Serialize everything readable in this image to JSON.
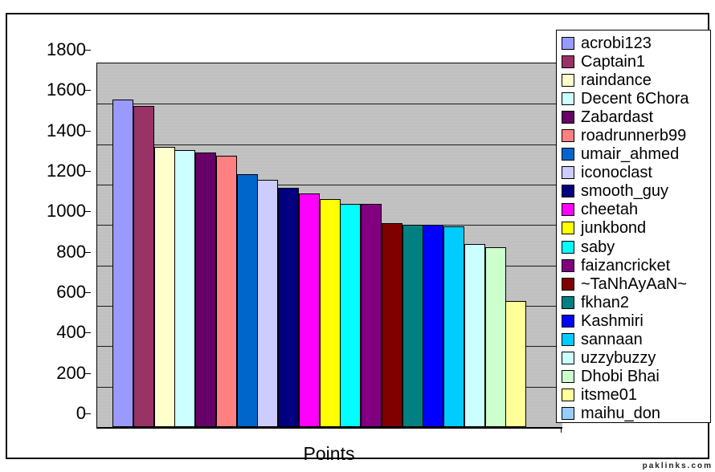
{
  "page": {
    "background": "#FFFFFF"
  },
  "watermark": {
    "text": "paklinks.com"
  },
  "chart_data": {
    "type": "bar",
    "title": "",
    "xlabel": "Points",
    "ylabel": "",
    "ylim": [
      0,
      1800
    ],
    "yticks": [
      1800,
      1600,
      1400,
      1200,
      1000,
      800,
      600,
      400,
      200,
      0
    ],
    "grid": true,
    "legend_position": "right",
    "plot_bg": "#C0C0C0",
    "categories": [
      "Points"
    ],
    "series": [
      {
        "name": "acrobi123",
        "value": 1620,
        "color": "#9999FF"
      },
      {
        "name": "Captain1",
        "value": 1590,
        "color": "#993366"
      },
      {
        "name": "raindance",
        "value": 1385,
        "color": "#FFFFCC"
      },
      {
        "name": "Decent 6Chora",
        "value": 1370,
        "color": "#CCFFFF"
      },
      {
        "name": "Zabardast",
        "value": 1360,
        "color": "#660066"
      },
      {
        "name": "roadrunnerb99",
        "value": 1345,
        "color": "#FF8080"
      },
      {
        "name": "umair_ahmed",
        "value": 1250,
        "color": "#0066CC"
      },
      {
        "name": "iconoclast",
        "value": 1225,
        "color": "#CCCCFF"
      },
      {
        "name": "smooth_guy",
        "value": 1185,
        "color": "#000080"
      },
      {
        "name": "cheetah",
        "value": 1155,
        "color": "#FF00FF"
      },
      {
        "name": "junkbond",
        "value": 1130,
        "color": "#FFFF00"
      },
      {
        "name": "saby",
        "value": 1105,
        "color": "#00FFFF"
      },
      {
        "name": "faizancricket",
        "value": 1105,
        "color": "#800080"
      },
      {
        "name": "~TaNhAyAaN~",
        "value": 1010,
        "color": "#800000"
      },
      {
        "name": "fkhan2",
        "value": 1000,
        "color": "#008080"
      },
      {
        "name": "Kashmiri",
        "value": 1000,
        "color": "#0000FF"
      },
      {
        "name": "sannaan",
        "value": 995,
        "color": "#00CCFF"
      },
      {
        "name": "uzzybuzzy",
        "value": 905,
        "color": "#CCFFFF"
      },
      {
        "name": "Dhobi Bhai",
        "value": 890,
        "color": "#CCFFCC"
      },
      {
        "name": "itsme01",
        "value": 625,
        "color": "#FFFF99"
      },
      {
        "name": "maihu_don",
        "value": null,
        "color": "#99CCFF"
      }
    ]
  }
}
